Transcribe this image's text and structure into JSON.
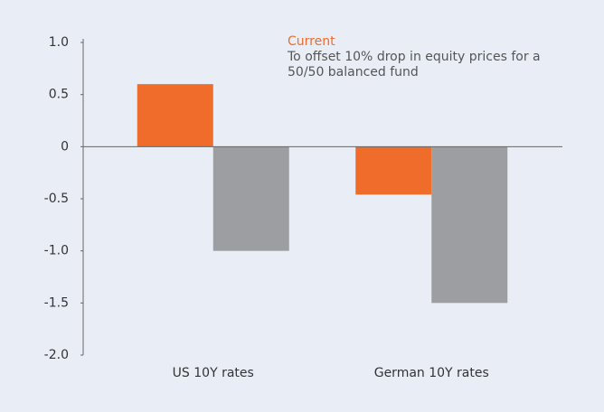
{
  "chart_data": {
    "type": "bar",
    "categories": [
      "US 10Y rates",
      "German 10Y rates"
    ],
    "series": [
      {
        "name": "Current",
        "color": "#ef6c2a",
        "values": [
          0.6,
          -0.46
        ]
      },
      {
        "name": "To offset 10% drop in equity prices for a 50/50 balanced fund",
        "color": "#9d9ea1",
        "values": [
          -1.0,
          -1.5
        ]
      }
    ],
    "ylim": [
      -2,
      1
    ],
    "yticks": [
      {
        "value": 1,
        "label": "1.0"
      },
      0.5,
      0,
      -0.5,
      {
        "value": -1,
        "label": "-1.0"
      },
      -1.5,
      {
        "value": -2,
        "label": "-2.0"
      }
    ],
    "grid": false
  }
}
